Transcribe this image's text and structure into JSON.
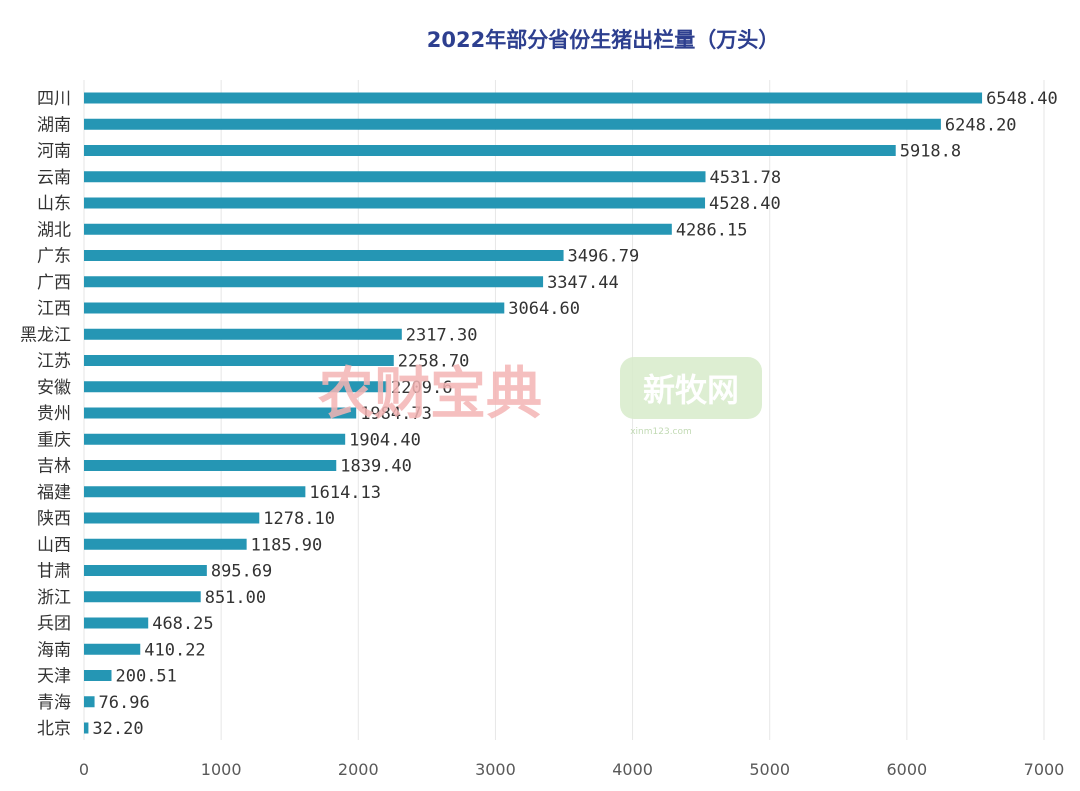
{
  "chart_data": {
    "type": "bar",
    "orientation": "horizontal",
    "title": "2022年部分省份生猪出栏量（万头）",
    "categories": [
      "四川",
      "湖南",
      "河南",
      "云南",
      "山东",
      "湖北",
      "广东",
      "广西",
      "江西",
      "黑龙江",
      "江苏",
      "安徽",
      "贵州",
      "重庆",
      "吉林",
      "福建",
      "陕西",
      "山西",
      "甘肃",
      "浙江",
      "兵团",
      "海南",
      "天津",
      "青海",
      "北京"
    ],
    "values": [
      6548.4,
      6248.2,
      5918.8,
      4531.78,
      4528.4,
      4286.15,
      3496.79,
      3347.44,
      3064.6,
      2317.3,
      2258.7,
      2209.6,
      1984.73,
      1904.4,
      1839.4,
      1614.13,
      1278.1,
      1185.9,
      895.69,
      851.0,
      468.25,
      410.22,
      200.51,
      76.96,
      32.2
    ],
    "value_labels": [
      "6548.40",
      "6248.20",
      "5918.8",
      "4531.78",
      "4528.40",
      "4286.15",
      "3496.79",
      "3347.44",
      "3064.60",
      "2317.30",
      "2258.70",
      "2209.6",
      "1984.73",
      "1904.40",
      "1839.40",
      "1614.13",
      "1278.10",
      "1185.90",
      "895.69",
      "851.00",
      "468.25",
      "410.22",
      "200.51",
      "76.96",
      "32.20"
    ],
    "xlim": [
      0,
      7000
    ],
    "x_ticks": [
      0,
      1000,
      2000,
      3000,
      4000,
      5000,
      6000,
      7000
    ],
    "grid": true,
    "bar_color": "#2596b4"
  },
  "watermarks": {
    "left": "农财宝典",
    "right": "新牧网",
    "right_sub": "xinm123.com"
  }
}
